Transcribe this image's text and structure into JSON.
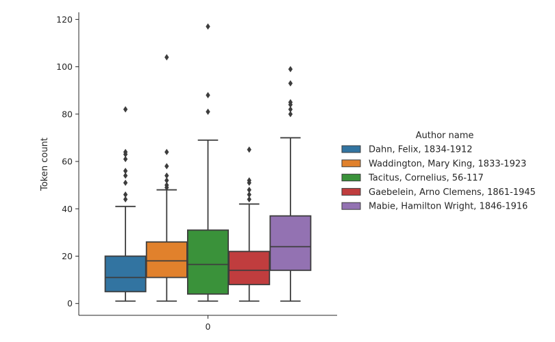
{
  "chart_data": {
    "type": "box",
    "x_categories": [
      "0"
    ],
    "xlabel": "",
    "ylabel": "Token count",
    "ylim": [
      -5,
      123
    ],
    "yticks": [
      0,
      20,
      40,
      60,
      80,
      100,
      120
    ],
    "grid": false,
    "legend": {
      "title": "Author name",
      "placement": "right",
      "entries": [
        "Dahn, Felix, 1834-1912",
        "Waddington, Mary King, 1833-1923",
        "Tacitus, Cornelius, 56-117",
        "Gaebelein, Arno Clemens, 1861-1945",
        "Mabie, Hamilton Wright, 1846-1916"
      ]
    },
    "series": [
      {
        "name": "Dahn, Felix, 1834-1912",
        "color": "#3274a1",
        "whisker_low": 1,
        "q1": 5,
        "median": 11,
        "q3": 20,
        "whisker_high": 41,
        "outliers": [
          44,
          46,
          51,
          54,
          56,
          61,
          63,
          64,
          82
        ]
      },
      {
        "name": "Waddington, Mary King, 1833-1923",
        "color": "#e1812c",
        "whisker_low": 1,
        "q1": 11,
        "median": 18,
        "q3": 26,
        "whisker_high": 48,
        "outliers": [
          49,
          50,
          52,
          54,
          58,
          64,
          104
        ]
      },
      {
        "name": "Tacitus, Cornelius, 56-117",
        "color": "#3a923a",
        "whisker_low": 1,
        "q1": 4,
        "median": 16.5,
        "q3": 31,
        "whisker_high": 69,
        "outliers": [
          81,
          88,
          117
        ]
      },
      {
        "name": "Gaebelein, Arno Clemens, 1861-1945",
        "color": "#c03d3e",
        "whisker_low": 1,
        "q1": 8,
        "median": 14,
        "q3": 22,
        "whisker_high": 42,
        "outliers": [
          44,
          46,
          48,
          51,
          52,
          65
        ]
      },
      {
        "name": "Mabie, Hamilton Wright, 1846-1916",
        "color": "#9372b2",
        "whisker_low": 1,
        "q1": 14,
        "median": 24,
        "q3": 37,
        "whisker_high": 70,
        "outliers": [
          80,
          82,
          84,
          85,
          93,
          99
        ]
      }
    ]
  }
}
